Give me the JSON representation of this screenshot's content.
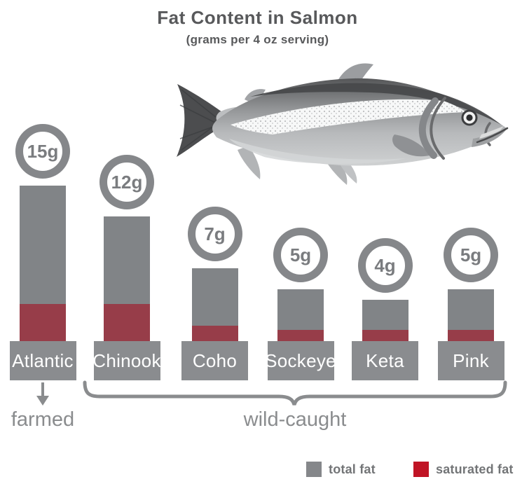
{
  "title": "Fat Content in Salmon",
  "subtitle": "(grams per 4 oz serving)",
  "chart_data": {
    "type": "bar",
    "stacked": true,
    "unit": "grams",
    "categories": [
      "Atlantic",
      "Chinook",
      "Coho",
      "Sockeye",
      "Keta",
      "Pink"
    ],
    "series": [
      {
        "name": "total fat",
        "values": [
          15,
          12,
          7,
          5,
          4,
          5
        ]
      },
      {
        "name": "saturated fat",
        "values": [
          3.6,
          3.6,
          1.5,
          1.1,
          1.1,
          1.1
        ],
        "estimated_from_pixels": true
      }
    ],
    "value_labels": [
      "15g",
      "12g",
      "7g",
      "5g",
      "4g",
      "5g"
    ],
    "groups": [
      {
        "label": "farmed",
        "categories": [
          "Atlantic"
        ]
      },
      {
        "label": "wild-caught",
        "categories": [
          "Chinook",
          "Coho",
          "Sockeye",
          "Keta",
          "Pink"
        ]
      }
    ],
    "ylim": [
      0,
      15
    ],
    "grid": false,
    "legend_position": "bottom-right"
  },
  "legend": [
    {
      "label": "total fat",
      "color": "#85878a"
    },
    {
      "label": "saturated fat",
      "color": "#c01425"
    }
  ],
  "colors": {
    "bar_total": "#818487",
    "bar_saturated": "#973d49",
    "label_box": "#8a8c8f",
    "circle_ring": "#85878a",
    "circle_text": "#7a7c7f",
    "title_text": "#58595b",
    "annotation_text": "#8a8c8e",
    "legend_text": "#737577",
    "background": "#ffffff"
  }
}
